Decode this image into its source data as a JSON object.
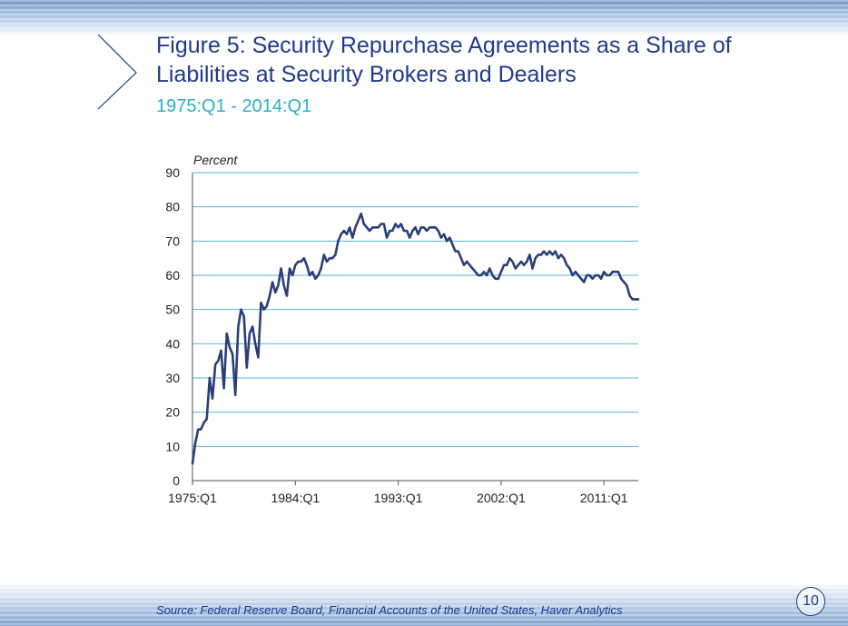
{
  "slide": {
    "title": "Figure 5:  Security Repurchase Agreements as a Share of Liabilities at Security Brokers and Dealers",
    "subtitle": "1975:Q1 - 2014:Q1",
    "source": "Source:  Federal Reserve Board, Financial Accounts of the United States, Haver Analytics",
    "page_number": "10",
    "colors": {
      "title": "#1f3b8a",
      "subtitle": "#2bb0c9",
      "series_line": "#2a3f7a",
      "gridline": "#5ab4d6"
    }
  },
  "chart_data": {
    "type": "line",
    "title": "",
    "xlabel": "",
    "ylabel": "Percent",
    "ylim": [
      0,
      90
    ],
    "yticks": [
      "0",
      "10",
      "20",
      "30",
      "40",
      "50",
      "60",
      "70",
      "80",
      "90"
    ],
    "xlim": [
      1975.0,
      2014.0
    ],
    "xticks": [
      {
        "label": "1975:Q1",
        "x": 1975.0
      },
      {
        "label": "1984:Q1",
        "x": 1984.0
      },
      {
        "label": "1993:Q1",
        "x": 1993.0
      },
      {
        "label": "2002:Q1",
        "x": 2002.0
      },
      {
        "label": "2011:Q1",
        "x": 2011.0
      }
    ],
    "grid": true,
    "series": [
      {
        "points": [
          [
            1975.0,
            5
          ],
          [
            1975.25,
            11
          ],
          [
            1975.5,
            15
          ],
          [
            1975.75,
            15
          ],
          [
            1976.0,
            17
          ],
          [
            1976.25,
            18
          ],
          [
            1976.5,
            30
          ],
          [
            1976.75,
            24
          ],
          [
            1977.0,
            34
          ],
          [
            1977.25,
            35
          ],
          [
            1977.5,
            38
          ],
          [
            1977.75,
            27
          ],
          [
            1978.0,
            43
          ],
          [
            1978.25,
            39
          ],
          [
            1978.5,
            37
          ],
          [
            1978.75,
            25
          ],
          [
            1979.0,
            45
          ],
          [
            1979.25,
            50
          ],
          [
            1979.5,
            48
          ],
          [
            1979.75,
            33
          ],
          [
            1980.0,
            43
          ],
          [
            1980.25,
            45
          ],
          [
            1980.5,
            40
          ],
          [
            1980.75,
            36
          ],
          [
            1981.0,
            52
          ],
          [
            1981.25,
            50
          ],
          [
            1981.5,
            51
          ],
          [
            1981.75,
            54
          ],
          [
            1982.0,
            58
          ],
          [
            1982.25,
            55
          ],
          [
            1982.5,
            57
          ],
          [
            1982.75,
            62
          ],
          [
            1983.0,
            57
          ],
          [
            1983.25,
            54
          ],
          [
            1983.5,
            62
          ],
          [
            1983.75,
            60
          ],
          [
            1984.0,
            63
          ],
          [
            1984.25,
            64
          ],
          [
            1984.5,
            64
          ],
          [
            1984.75,
            65
          ],
          [
            1985.0,
            63
          ],
          [
            1985.25,
            60
          ],
          [
            1985.5,
            61
          ],
          [
            1985.75,
            59
          ],
          [
            1986.0,
            60
          ],
          [
            1986.25,
            62
          ],
          [
            1986.5,
            66
          ],
          [
            1986.75,
            64
          ],
          [
            1987.0,
            65
          ],
          [
            1987.25,
            65
          ],
          [
            1987.5,
            66
          ],
          [
            1987.75,
            70
          ],
          [
            1988.0,
            72
          ],
          [
            1988.25,
            73
          ],
          [
            1988.5,
            72
          ],
          [
            1988.75,
            74
          ],
          [
            1989.0,
            71
          ],
          [
            1989.25,
            74
          ],
          [
            1989.5,
            76
          ],
          [
            1989.75,
            78
          ],
          [
            1990.0,
            75
          ],
          [
            1990.25,
            74
          ],
          [
            1990.5,
            73
          ],
          [
            1990.75,
            74
          ],
          [
            1991.0,
            74
          ],
          [
            1991.25,
            74
          ],
          [
            1991.5,
            75
          ],
          [
            1991.75,
            75
          ],
          [
            1992.0,
            71
          ],
          [
            1992.25,
            73
          ],
          [
            1992.5,
            73
          ],
          [
            1992.75,
            75
          ],
          [
            1993.0,
            74
          ],
          [
            1993.25,
            75
          ],
          [
            1993.5,
            73
          ],
          [
            1993.75,
            73
          ],
          [
            1994.0,
            71
          ],
          [
            1994.25,
            73
          ],
          [
            1994.5,
            74
          ],
          [
            1994.75,
            72
          ],
          [
            1995.0,
            74
          ],
          [
            1995.25,
            74
          ],
          [
            1995.5,
            73
          ],
          [
            1995.75,
            74
          ],
          [
            1996.0,
            74
          ],
          [
            1996.25,
            74
          ],
          [
            1996.5,
            73
          ],
          [
            1996.75,
            71
          ],
          [
            1997.0,
            72
          ],
          [
            1997.25,
            70
          ],
          [
            1997.5,
            71
          ],
          [
            1997.75,
            69
          ],
          [
            1998.0,
            67
          ],
          [
            1998.25,
            67
          ],
          [
            1998.5,
            65
          ],
          [
            1998.75,
            63
          ],
          [
            1999.0,
            64
          ],
          [
            1999.25,
            63
          ],
          [
            1999.5,
            62
          ],
          [
            1999.75,
            61
          ],
          [
            2000.0,
            60
          ],
          [
            2000.25,
            60
          ],
          [
            2000.5,
            61
          ],
          [
            2000.75,
            60
          ],
          [
            2001.0,
            62
          ],
          [
            2001.25,
            60
          ],
          [
            2001.5,
            59
          ],
          [
            2001.75,
            59
          ],
          [
            2002.0,
            61
          ],
          [
            2002.25,
            63
          ],
          [
            2002.5,
            63
          ],
          [
            2002.75,
            65
          ],
          [
            2003.0,
            64
          ],
          [
            2003.25,
            62
          ],
          [
            2003.5,
            63
          ],
          [
            2003.75,
            64
          ],
          [
            2004.0,
            63
          ],
          [
            2004.25,
            64
          ],
          [
            2004.5,
            66
          ],
          [
            2004.75,
            62
          ],
          [
            2005.0,
            65
          ],
          [
            2005.25,
            66
          ],
          [
            2005.5,
            66
          ],
          [
            2005.75,
            67
          ],
          [
            2006.0,
            66
          ],
          [
            2006.25,
            67
          ],
          [
            2006.5,
            66
          ],
          [
            2006.75,
            67
          ],
          [
            2007.0,
            65
          ],
          [
            2007.25,
            66
          ],
          [
            2007.5,
            65
          ],
          [
            2007.75,
            63
          ],
          [
            2008.0,
            62
          ],
          [
            2008.25,
            60
          ],
          [
            2008.5,
            61
          ],
          [
            2008.75,
            60
          ],
          [
            2009.0,
            59
          ],
          [
            2009.25,
            58
          ],
          [
            2009.5,
            60
          ],
          [
            2009.75,
            60
          ],
          [
            2010.0,
            59
          ],
          [
            2010.25,
            60
          ],
          [
            2010.5,
            60
          ],
          [
            2010.75,
            59
          ],
          [
            2011.0,
            61
          ],
          [
            2011.25,
            60
          ],
          [
            2011.5,
            60
          ],
          [
            2011.75,
            61
          ],
          [
            2012.0,
            61
          ],
          [
            2012.25,
            61
          ],
          [
            2012.5,
            59
          ],
          [
            2012.75,
            58
          ],
          [
            2013.0,
            57
          ],
          [
            2013.25,
            54
          ],
          [
            2013.5,
            53
          ],
          [
            2013.75,
            53
          ],
          [
            2014.0,
            53
          ]
        ]
      }
    ]
  }
}
